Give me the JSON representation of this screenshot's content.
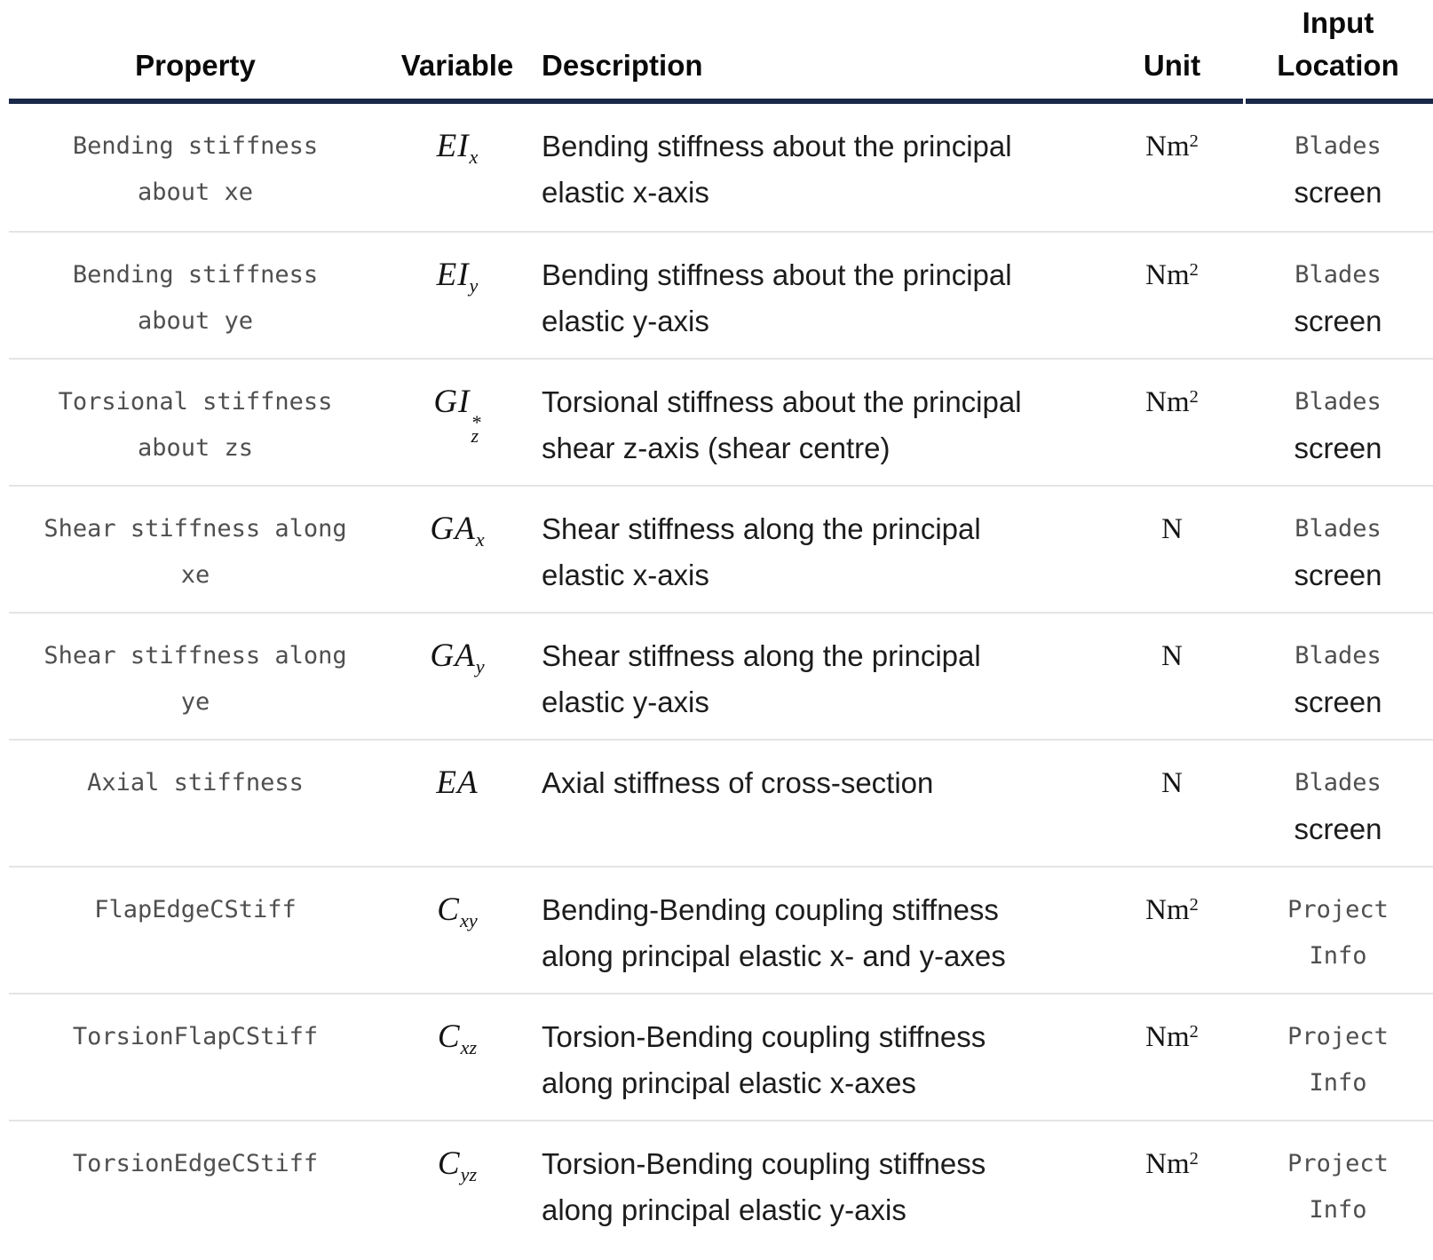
{
  "table": {
    "colors": {
      "header_border": "#1b2949",
      "header_text": "#0a0a0a",
      "row_border": "#e4e4e4",
      "code_text": "#4f4f4f",
      "body_text": "#1c1c1c"
    },
    "headers": {
      "property": "Property",
      "variable": "Variable",
      "description": "Description",
      "unit": "Unit",
      "input_location": "Input\nLocation"
    },
    "rows": [
      {
        "property": "Bending stiffness\nabout xe",
        "variable": {
          "base": "EI",
          "sup": "",
          "sub": "x"
        },
        "description": "Bending stiffness about the principal\nelastic x-axis",
        "unit": {
          "base": "Nm",
          "sup": "2"
        },
        "location_code": "Blades",
        "location_plain": "screen"
      },
      {
        "property": "Bending stiffness\nabout ye",
        "variable": {
          "base": "EI",
          "sup": "",
          "sub": "y"
        },
        "description": "Bending stiffness about the principal\nelastic y-axis",
        "unit": {
          "base": "Nm",
          "sup": "2"
        },
        "location_code": "Blades",
        "location_plain": "screen"
      },
      {
        "property": "Torsional stiffness\nabout zs",
        "variable": {
          "base": "GI",
          "sup": "*",
          "sub": "z"
        },
        "description": "Torsional stiffness about the principal\nshear z-axis (shear centre)",
        "unit": {
          "base": "Nm",
          "sup": "2"
        },
        "location_code": "Blades",
        "location_plain": "screen"
      },
      {
        "property": "Shear stiffness along\nxe",
        "variable": {
          "base": "GA",
          "sup": "",
          "sub": "x"
        },
        "description": "Shear stiffness along the principal\nelastic x-axis",
        "unit": {
          "base": "N",
          "sup": ""
        },
        "location_code": "Blades",
        "location_plain": "screen"
      },
      {
        "property": "Shear stiffness along\nye",
        "variable": {
          "base": "GA",
          "sup": "",
          "sub": "y"
        },
        "description": "Shear stiffness along the principal\nelastic y-axis",
        "unit": {
          "base": "N",
          "sup": ""
        },
        "location_code": "Blades",
        "location_plain": "screen"
      },
      {
        "property": "Axial stiffness",
        "variable": {
          "base": "EA",
          "sup": "",
          "sub": ""
        },
        "description": "Axial stiffness of cross-section",
        "unit": {
          "base": "N",
          "sup": ""
        },
        "location_code": "Blades",
        "location_plain": "screen"
      },
      {
        "property": "FlapEdgeCStiff",
        "variable": {
          "base": "C",
          "sup": "",
          "sub": "xy"
        },
        "description": "Bending-Bending coupling stiffness\nalong principal elastic x- and y-axes",
        "unit": {
          "base": "Nm",
          "sup": "2"
        },
        "location_code": "Project\nInfo",
        "location_plain": ""
      },
      {
        "property": "TorsionFlapCStiff",
        "variable": {
          "base": "C",
          "sup": "",
          "sub": "xz"
        },
        "description": "Torsion-Bending coupling stiffness\nalong principal elastic x-axes",
        "unit": {
          "base": "Nm",
          "sup": "2"
        },
        "location_code": "Project\nInfo",
        "location_plain": ""
      },
      {
        "property": "TorsionEdgeCStiff",
        "variable": {
          "base": "C",
          "sup": "",
          "sub": "yz"
        },
        "description": "Torsion-Bending coupling stiffness\nalong principal elastic y-axis",
        "unit": {
          "base": "Nm",
          "sup": "2"
        },
        "location_code": "Project\nInfo",
        "location_plain": ""
      }
    ]
  }
}
